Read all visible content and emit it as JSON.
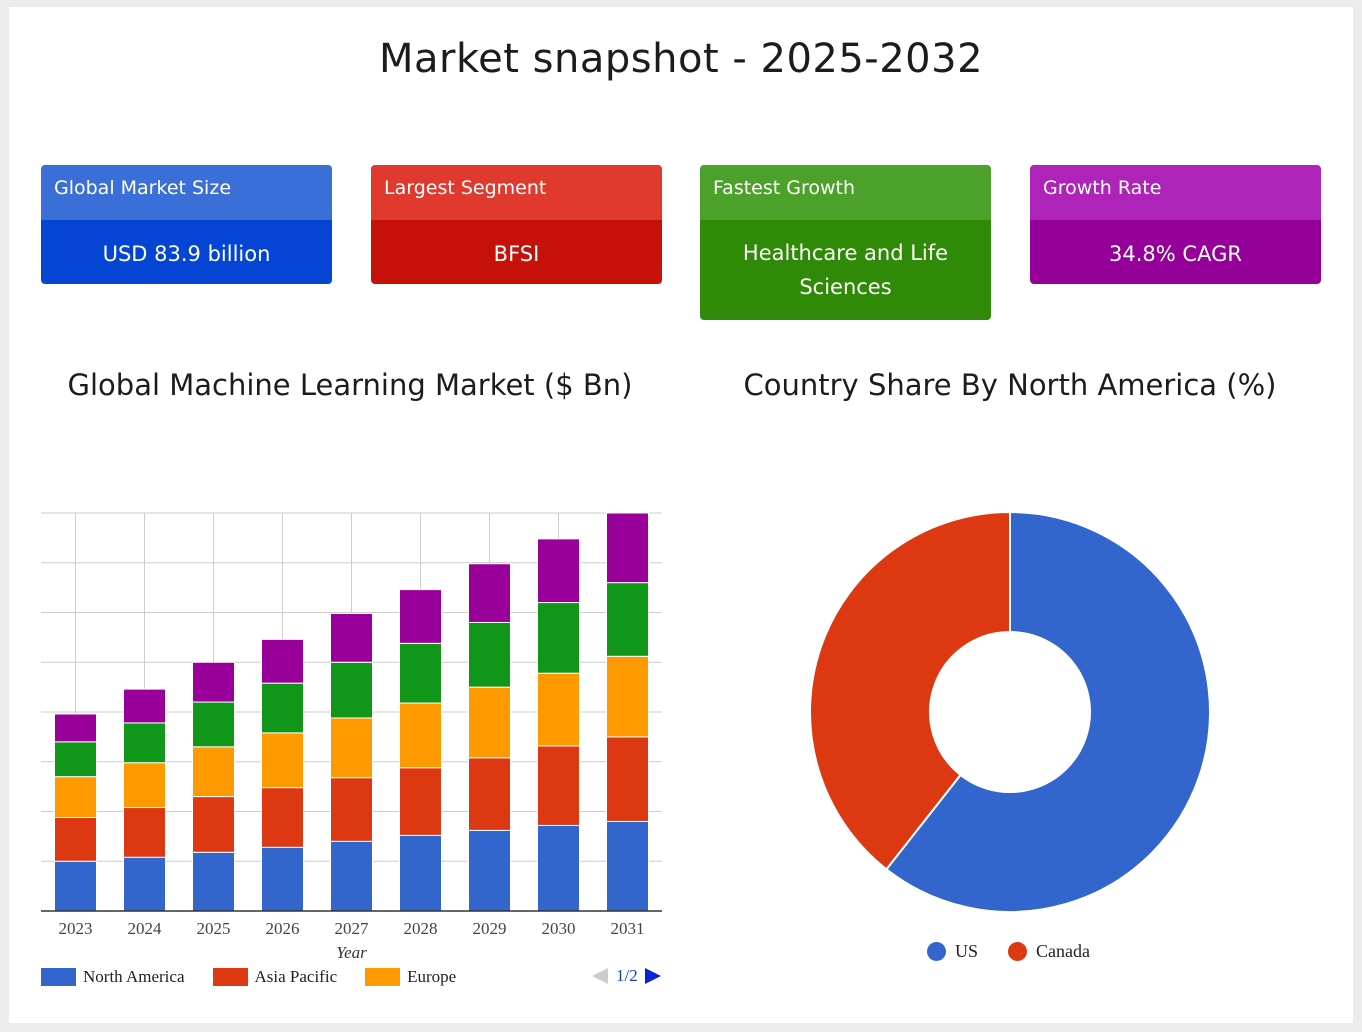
{
  "title": "Market snapshot - 2025-2032",
  "cards": [
    {
      "header": "Global Market Size",
      "value": "USD 83.9 billion",
      "head_color": "#3a6fd8",
      "body_color": "#0446d3"
    },
    {
      "header": "Largest Segment",
      "value": "BFSI",
      "head_color": "#df3a2d",
      "body_color": "#c51109"
    },
    {
      "header": "Fastest Growth",
      "value": "Healthcare and Life Sciences",
      "head_color": "#4ca12a",
      "body_color": "#2f8a07"
    },
    {
      "header": "Growth Rate",
      "value": "34.8% CAGR",
      "head_color": "#ae24b8",
      "body_color": "#940098"
    }
  ],
  "bar_title": "Global Machine Learning Market ($ Bn)",
  "pie_title": "Country Share By North America (%)",
  "bar_legend": [
    {
      "name": "North America",
      "color": "#3366cc"
    },
    {
      "name": "Asia Pacific",
      "color": "#dc3912"
    },
    {
      "name": "Europe",
      "color": "#ff9900"
    }
  ],
  "pager": {
    "text": "1/2",
    "prev_icon": "arrow-left-icon",
    "next_icon": "arrow-right-icon"
  },
  "pie_legend": [
    {
      "name": "US",
      "color": "#3366cc"
    },
    {
      "name": "Canada",
      "color": "#dc3912"
    }
  ],
  "chart_data": [
    {
      "type": "bar",
      "stacked": true,
      "title": "Global Machine Learning Market ($ Bn)",
      "xlabel": "Year",
      "ylabel": "",
      "categories": [
        "2023",
        "2024",
        "2025",
        "2026",
        "2027",
        "2028",
        "2029",
        "2030",
        "2031"
      ],
      "ylim": [
        0,
        80
      ],
      "grid": true,
      "series": [
        {
          "name": "North America",
          "color": "#3366cc",
          "values": [
            10.0,
            10.8,
            11.8,
            12.8,
            14.0,
            15.2,
            16.2,
            17.2,
            18.0
          ]
        },
        {
          "name": "Asia Pacific",
          "color": "#dc3912",
          "values": [
            8.8,
            10.0,
            11.2,
            12.0,
            12.8,
            13.6,
            14.6,
            16.0,
            17.0
          ]
        },
        {
          "name": "Europe",
          "color": "#ff9900",
          "values": [
            8.2,
            9.0,
            10.0,
            11.0,
            12.0,
            13.0,
            14.2,
            14.6,
            16.2
          ]
        },
        {
          "name": "",
          "color": "#109618",
          "values": [
            7.0,
            8.0,
            9.0,
            10.0,
            11.2,
            12.0,
            13.0,
            14.2,
            14.8
          ]
        },
        {
          "name": "",
          "color": "#990099",
          "values": [
            5.6,
            6.8,
            8.0,
            8.8,
            9.8,
            10.8,
            11.8,
            12.8,
            14.0
          ]
        }
      ]
    },
    {
      "type": "pie",
      "donut": true,
      "title": "Country Share By North America (%)",
      "categories": [
        "US",
        "Canada"
      ],
      "values": [
        60.6,
        39.4
      ],
      "colors": [
        "#3366cc",
        "#dc3912"
      ],
      "legend": "bottom"
    }
  ]
}
